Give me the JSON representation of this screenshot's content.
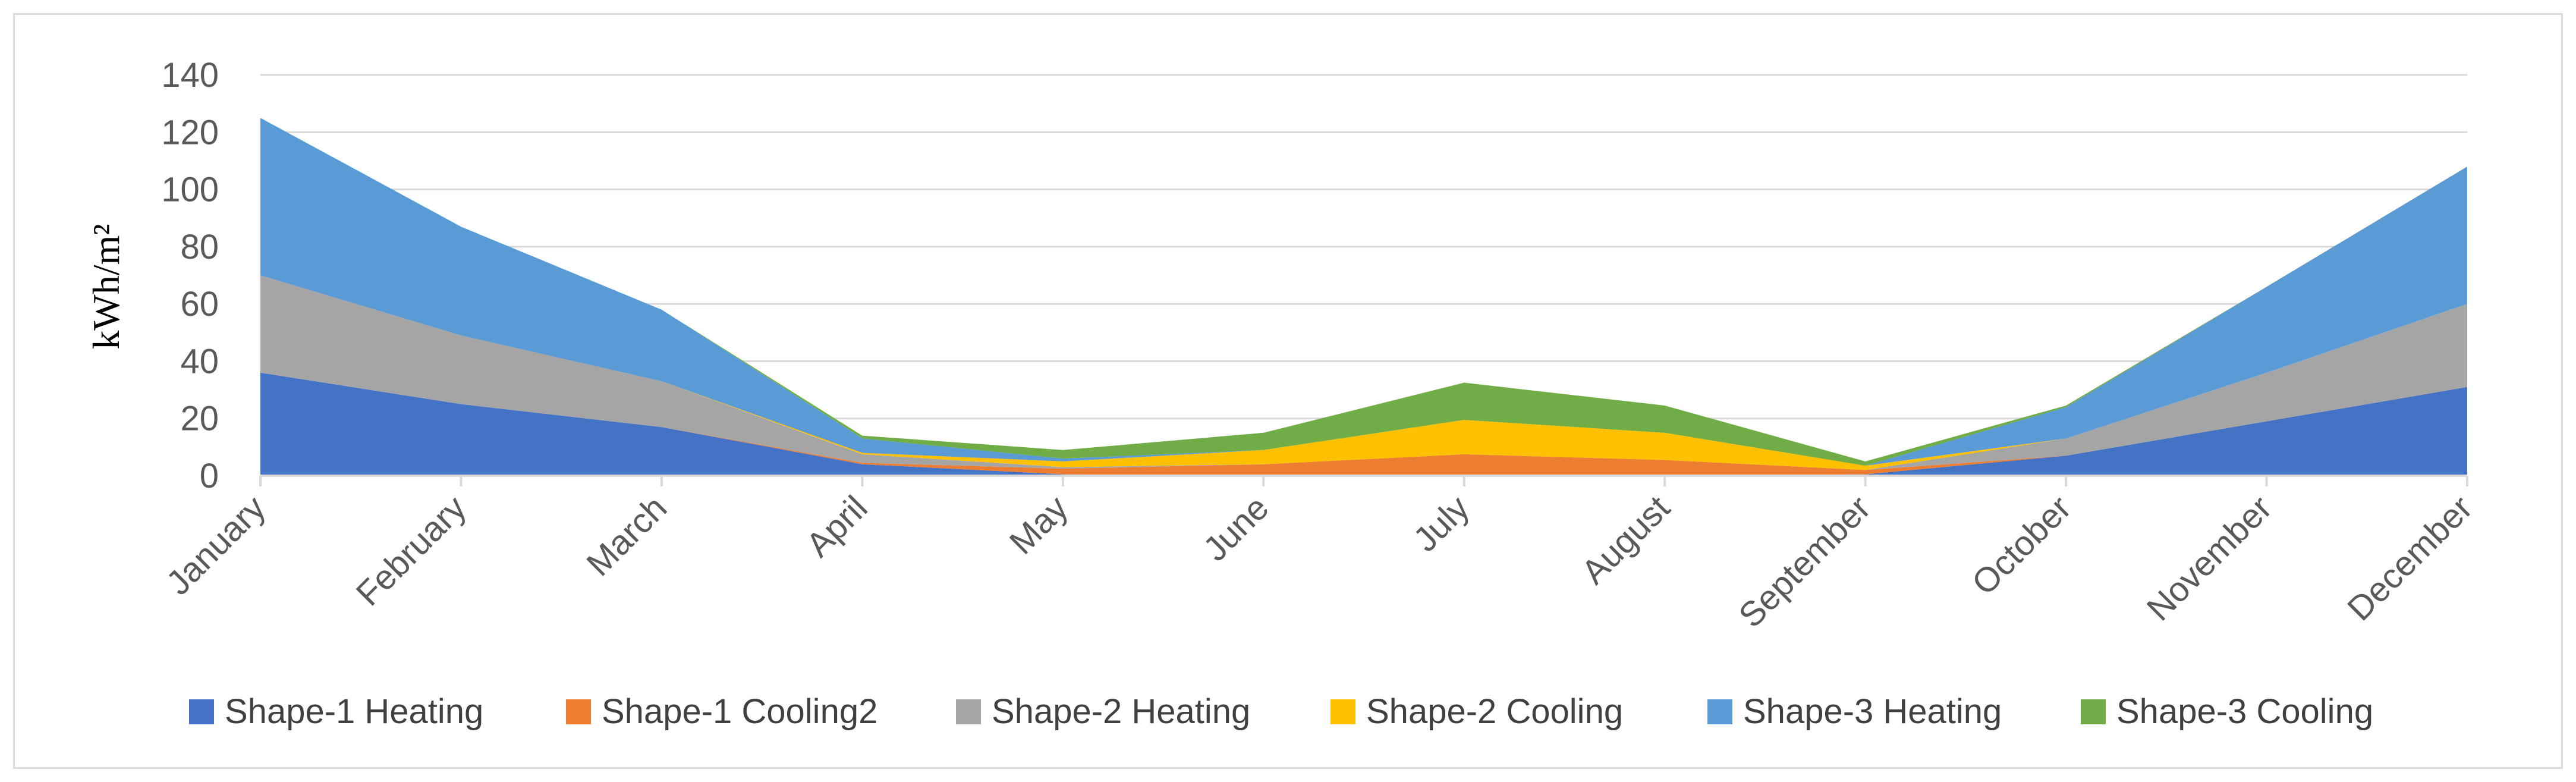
{
  "chart_data": {
    "type": "area",
    "stacked": true,
    "title": "",
    "xlabel": "",
    "ylabel": "kWh/m²",
    "ylim": [
      0,
      140
    ],
    "yticks": [
      "0",
      "20",
      "40",
      "60",
      "80",
      "100",
      "120",
      "140"
    ],
    "grid": true,
    "legend_position": "bottom",
    "categories": [
      "January",
      "February",
      "March",
      "April",
      "May",
      "June",
      "July",
      "August",
      "September",
      "October",
      "November",
      "December"
    ],
    "series": [
      {
        "name": "Shape-1 Heating",
        "color": "#4472C4",
        "values": [
          36,
          25,
          17,
          4,
          0.5,
          0,
          0,
          0,
          0.5,
          7,
          19,
          31
        ]
      },
      {
        "name": "Shape-1 Cooling2",
        "color": "#ED7D31",
        "values": [
          0,
          0,
          0,
          0.5,
          2,
          4,
          7.5,
          5.5,
          1.5,
          0,
          0,
          0
        ]
      },
      {
        "name": "Shape-2 Heating",
        "color": "#A5A5A5",
        "values": [
          34,
          24,
          16,
          3,
          0.5,
          0,
          0,
          0,
          0,
          6,
          17,
          29
        ]
      },
      {
        "name": "Shape-2 Cooling",
        "color": "#FFC000",
        "values": [
          0,
          0,
          0,
          0.5,
          2,
          5,
          12,
          9.5,
          1.5,
          0,
          0,
          0
        ]
      },
      {
        "name": "Shape-3 Heating",
        "color": "#5B9BD5",
        "values": [
          55,
          38,
          25,
          5,
          1,
          0,
          0,
          0,
          0,
          11,
          30,
          48
        ]
      },
      {
        "name": "Shape-3 Cooling",
        "color": "#70AD47",
        "values": [
          0,
          0,
          0,
          1,
          3,
          6,
          13,
          9.5,
          1.5,
          0.5,
          0,
          0
        ]
      }
    ]
  }
}
